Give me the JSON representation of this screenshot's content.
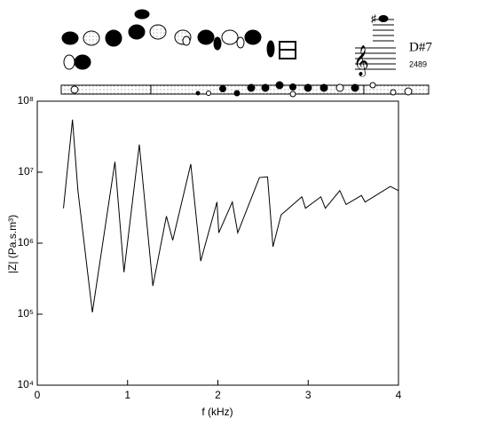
{
  "chart_data": {
    "type": "line",
    "note_name": "D#7",
    "note_frequency": "2489",
    "x_label": "f (kHz)",
    "y_label": "|Z| (Pa.s.m³)",
    "x": [
      0.29,
      0.39,
      0.45,
      0.61,
      0.86,
      0.96,
      1.13,
      1.28,
      1.43,
      1.5,
      1.7,
      1.81,
      1.99,
      2.01,
      2.16,
      2.22,
      2.46,
      2.55,
      2.61,
      2.7,
      2.93,
      2.97,
      3.14,
      3.19,
      3.35,
      3.42,
      3.59,
      3.63,
      3.91,
      4.0
    ],
    "series": [
      {
        "color": "#000000",
        "values": [
          3100000,
          55000000,
          5500000,
          106000,
          14000000,
          390000,
          24500000,
          250000,
          2400000,
          1100000,
          13000000,
          560000,
          3800000,
          1400000,
          3800000,
          1400000,
          8400000,
          8600000,
          890000,
          2500000,
          4500000,
          3100000,
          4500000,
          3100000,
          5500000,
          3500000,
          4700000,
          3800000,
          6300000,
          5500000
        ]
      }
    ],
    "xlim": [
      0,
      4
    ],
    "xticks": [
      0,
      1,
      2,
      3,
      4
    ],
    "ylim": [
      10000,
      100000000
    ],
    "log_y": true,
    "yticks": [
      {
        "value": 10000,
        "label": "10⁴"
      },
      {
        "value": 100000,
        "label": "10⁵"
      },
      {
        "value": 1000000,
        "label": "10⁶"
      },
      {
        "value": 10000000,
        "label": "10⁷"
      },
      {
        "value": 100000000,
        "label": "10⁸"
      }
    ]
  }
}
